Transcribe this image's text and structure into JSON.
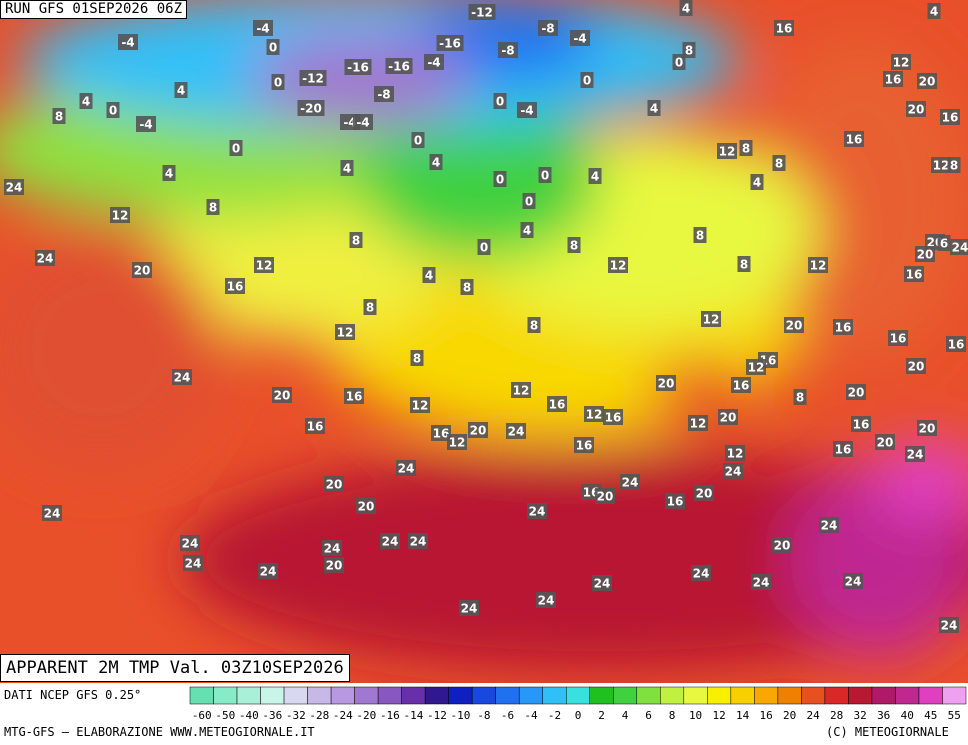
{
  "header": {
    "run": "RUN GFS 01SEP2026 06Z",
    "valid": "APPARENT 2M TMP Val. 03Z10SEP2026"
  },
  "footer": {
    "source": "DATI NCEP GFS 0.25°",
    "credit": "MTG-GFS — ELABORAZIONE WWW.METEOGIORNALE.IT",
    "copyright": "(C) METEOGIORNALE"
  },
  "map": {
    "labels": [
      -4,
      -4,
      0,
      -12,
      -8,
      -4,
      4,
      16,
      4,
      -16,
      -8,
      -16,
      -16,
      -4,
      -12,
      0,
      8,
      0,
      0,
      12,
      16,
      20,
      4,
      4,
      0,
      8,
      -4,
      -8,
      -20,
      -4,
      -4,
      0,
      -4,
      4,
      20,
      16,
      0,
      0,
      12,
      8,
      16,
      4,
      4,
      4,
      0,
      0,
      4,
      8,
      4,
      12,
      8,
      24,
      8,
      12,
      0,
      4,
      8,
      0,
      8,
      8,
      20,
      6,
      24,
      24,
      20,
      12,
      4,
      8,
      12,
      8,
      12,
      20,
      16,
      16,
      8,
      8,
      12,
      12,
      20,
      16,
      16,
      16,
      8,
      16,
      12,
      24,
      12,
      20,
      16,
      8,
      20,
      20,
      20,
      16,
      12,
      16,
      12,
      16,
      12,
      20,
      16,
      16,
      12,
      20,
      24,
      16,
      12,
      16,
      20,
      20,
      16,
      24,
      24,
      24,
      20,
      24,
      16,
      20,
      16,
      20,
      20,
      24,
      24,
      24,
      24,
      24,
      24,
      24,
      20,
      24,
      20,
      24,
      24,
      24,
      24,
      24,
      24,
      24,
      24
    ]
  },
  "colorbar": {
    "ticks": [
      -60,
      -50,
      -40,
      -36,
      -32,
      -28,
      -24,
      -20,
      -16,
      -14,
      -12,
      -10,
      -8,
      -6,
      -4,
      -2,
      0,
      2,
      4,
      6,
      8,
      10,
      12,
      14,
      16,
      20,
      24,
      28,
      32,
      36,
      40,
      45,
      55
    ],
    "colors": [
      "#66e0b0",
      "#88ebc8",
      "#aaf0d8",
      "#c8f5e8",
      "#d8d8f0",
      "#c8b8e8",
      "#b898e0",
      "#a078d0",
      "#8858c0",
      "#6830a8",
      "#301890",
      "#1020c0",
      "#1848e0",
      "#2070f0",
      "#2898f8",
      "#30c0f8",
      "#38e0e0",
      "#20c020",
      "#40d040",
      "#80e040",
      "#c0f040",
      "#e8f840",
      "#f8f000",
      "#f8d000",
      "#f8a800",
      "#f08000",
      "#e85020",
      "#d82828",
      "#b81830",
      "#b01868",
      "#c02890",
      "#e040c0",
      "#f0a0f0"
    ]
  }
}
